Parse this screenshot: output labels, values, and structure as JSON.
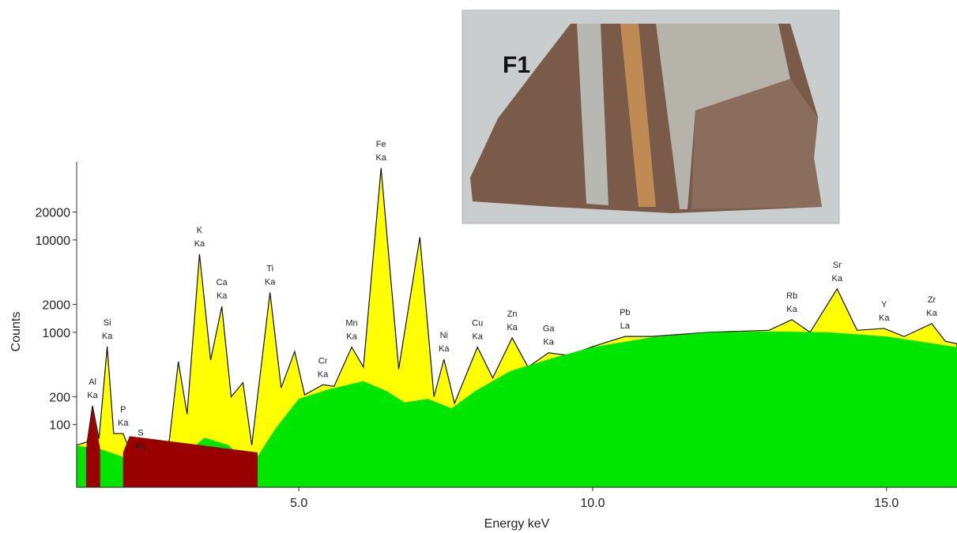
{
  "chart_data": {
    "type": "spectrum",
    "xlabel": "Energy keV",
    "ylabel": "Counts",
    "log_y": true,
    "xlim": [
      1.22,
      16.2
    ],
    "ylim": [
      21,
      70000
    ],
    "xticks": [
      {
        "value": 5,
        "label": "5.0"
      },
      {
        "value": 10,
        "label": "10.0"
      },
      {
        "value": 15,
        "label": "15.0"
      }
    ],
    "yticks": [
      100,
      200,
      1000,
      2000,
      10000,
      20000
    ],
    "series": [
      {
        "color": "#ffff00",
        "x": [
          1.22,
          1.4,
          1.49,
          1.6,
          1.74,
          1.85,
          2.01,
          2.2,
          2.31,
          2.5,
          2.7,
          2.8,
          2.95,
          3.1,
          3.31,
          3.5,
          3.69,
          3.85,
          4.05,
          4.2,
          4.51,
          4.7,
          4.93,
          5.1,
          5.41,
          5.6,
          5.9,
          6.1,
          6.4,
          6.7,
          7.06,
          7.3,
          7.47,
          7.65,
          8.04,
          8.3,
          8.63,
          8.9,
          9.25,
          9.6,
          10.0,
          10.55,
          11.0,
          12.0,
          13.0,
          13.39,
          13.7,
          14.16,
          14.5,
          14.96,
          15.3,
          15.77,
          16.0,
          16.2
        ],
        "values": [
          60,
          65,
          160,
          70,
          700,
          80,
          80,
          40,
          45,
          35,
          40,
          70,
          480,
          130,
          7000,
          500,
          1900,
          200,
          285,
          60,
          2700,
          250,
          620,
          210,
          270,
          260,
          690,
          420,
          60000,
          400,
          10700,
          200,
          510,
          170,
          690,
          320,
          870,
          420,
          600,
          560,
          700,
          900,
          900,
          1000,
          1050,
          1370,
          1000,
          2950,
          1050,
          1100,
          900,
          1240,
          800,
          750
        ]
      },
      {
        "color": "#00e600",
        "x": [
          1.22,
          1.6,
          2.0,
          2.57,
          3.0,
          3.4,
          3.8,
          4.2,
          4.6,
          5.0,
          5.5,
          6.1,
          6.5,
          6.8,
          7.2,
          7.6,
          8.0,
          8.6,
          9.3,
          10.0,
          11.0,
          12.0,
          13.0,
          14.0,
          15.0,
          16.2
        ],
        "values": [
          59,
          55,
          45,
          29,
          45,
          72,
          60,
          36,
          90,
          190,
          240,
          295,
          230,
          174,
          190,
          150,
          230,
          380,
          520,
          690,
          880,
          1000,
          1020,
          1000,
          900,
          690
        ]
      },
      {
        "color": "#990000",
        "x": [
          1.38,
          1.49,
          1.62,
          1.9,
          2.01,
          2.12,
          4.3,
          4.51,
          4.72
        ],
        "values": [
          55,
          150,
          55,
          null,
          50,
          75,
          50,
          null,
          80
        ]
      }
    ],
    "annotations": [
      {
        "element": "Al",
        "line": "Ka",
        "x": 1.49
      },
      {
        "element": "Si",
        "line": "Ka",
        "x": 1.74
      },
      {
        "element": "P",
        "line": "Ka",
        "x": 2.01
      },
      {
        "element": "S",
        "line": "Ka",
        "x": 2.31
      },
      {
        "element": "K",
        "line": "Ka",
        "x": 3.31
      },
      {
        "element": "Ca",
        "line": "Ka",
        "x": 3.69
      },
      {
        "element": "Ti",
        "line": "Ka",
        "x": 4.51
      },
      {
        "element": "Cr",
        "line": "Ka",
        "x": 5.41
      },
      {
        "element": "Mn",
        "line": "Ka",
        "x": 5.9
      },
      {
        "element": "Fe",
        "line": "Ka",
        "x": 6.4
      },
      {
        "element": "Ni",
        "line": "Ka",
        "x": 7.47
      },
      {
        "element": "Cu",
        "line": "Ka",
        "x": 8.04
      },
      {
        "element": "Zn",
        "line": "Ka",
        "x": 8.63
      },
      {
        "element": "Ga",
        "line": "Ka",
        "x": 9.25
      },
      {
        "element": "Pb",
        "line": "La",
        "x": 10.55
      },
      {
        "element": "Rb",
        "line": "Ka",
        "x": 13.39
      },
      {
        "element": "Sr",
        "line": "Ka",
        "x": 14.16
      },
      {
        "element": "Y",
        "line": "Ka",
        "x": 14.96
      },
      {
        "element": "Zr",
        "line": "Ka",
        "x": 15.77
      }
    ],
    "photo_label": "F1"
  }
}
